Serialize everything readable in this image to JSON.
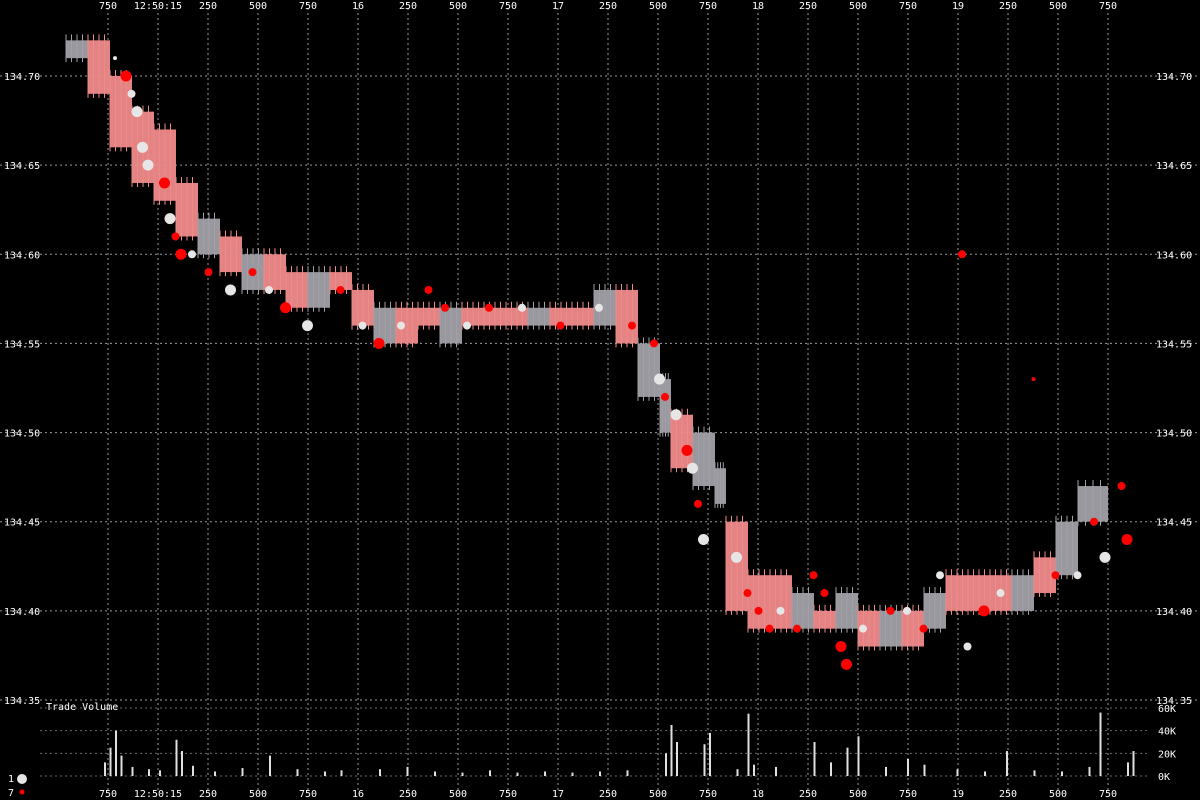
{
  "colors": {
    "background": "#000000",
    "text": "#ffffff",
    "grid": "#9a9a9a",
    "buy": "#ff0000",
    "sell": "#e6e6e6",
    "bid_ask_red": "#f08a8a",
    "bid_ask_gray": "#a0a0a6",
    "volume": "#e0e0e0"
  },
  "legend": {
    "buy_count": "7",
    "sell_count": "1"
  },
  "chart_data": [
    {
      "type": "scatter",
      "ylim": [
        134.35,
        134.72
      ],
      "y_ticks": [
        "134.35",
        "134.40",
        "134.45",
        "134.50",
        "134.55",
        "134.60",
        "134.65",
        "134.70"
      ],
      "x_ticks": [
        "750",
        "12:50:15",
        "250",
        "500",
        "750",
        "16",
        "250",
        "500",
        "750",
        "17",
        "250",
        "500",
        "750",
        "18",
        "250",
        "500",
        "750",
        "19",
        "250",
        "500",
        "750"
      ],
      "bid_ask_spread": [
        {
          "t": 0.0,
          "lo": 134.71,
          "hi": 134.72,
          "tone": "gray"
        },
        {
          "t": 0.4,
          "lo": 134.69,
          "hi": 134.72,
          "tone": "red"
        },
        {
          "t": 0.8,
          "lo": 134.66,
          "hi": 134.7,
          "tone": "red"
        },
        {
          "t": 1.2,
          "lo": 134.64,
          "hi": 134.68,
          "tone": "red"
        },
        {
          "t": 1.6,
          "lo": 134.63,
          "hi": 134.67,
          "tone": "red"
        },
        {
          "t": 2.0,
          "lo": 134.61,
          "hi": 134.64,
          "tone": "red"
        },
        {
          "t": 2.4,
          "lo": 134.6,
          "hi": 134.62,
          "tone": "gray"
        },
        {
          "t": 2.8,
          "lo": 134.59,
          "hi": 134.61,
          "tone": "red"
        },
        {
          "t": 3.2,
          "lo": 134.58,
          "hi": 134.6,
          "tone": "gray"
        },
        {
          "t": 3.6,
          "lo": 134.58,
          "hi": 134.6,
          "tone": "red"
        },
        {
          "t": 4.0,
          "lo": 134.57,
          "hi": 134.59,
          "tone": "red"
        },
        {
          "t": 4.4,
          "lo": 134.57,
          "hi": 134.59,
          "tone": "gray"
        },
        {
          "t": 4.8,
          "lo": 134.58,
          "hi": 134.59,
          "tone": "red"
        },
        {
          "t": 5.2,
          "lo": 134.56,
          "hi": 134.58,
          "tone": "red"
        },
        {
          "t": 5.6,
          "lo": 134.55,
          "hi": 134.57,
          "tone": "gray"
        },
        {
          "t": 6.0,
          "lo": 134.55,
          "hi": 134.57,
          "tone": "red"
        },
        {
          "t": 6.4,
          "lo": 134.56,
          "hi": 134.57,
          "tone": "red"
        },
        {
          "t": 6.8,
          "lo": 134.55,
          "hi": 134.57,
          "tone": "gray"
        },
        {
          "t": 7.2,
          "lo": 134.56,
          "hi": 134.57,
          "tone": "red"
        },
        {
          "t": 7.6,
          "lo": 134.56,
          "hi": 134.57,
          "tone": "red"
        },
        {
          "t": 8.0,
          "lo": 134.56,
          "hi": 134.57,
          "tone": "red"
        },
        {
          "t": 8.4,
          "lo": 134.56,
          "hi": 134.57,
          "tone": "gray"
        },
        {
          "t": 8.8,
          "lo": 134.56,
          "hi": 134.57,
          "tone": "red"
        },
        {
          "t": 9.2,
          "lo": 134.56,
          "hi": 134.57,
          "tone": "red"
        },
        {
          "t": 9.6,
          "lo": 134.56,
          "hi": 134.58,
          "tone": "gray"
        },
        {
          "t": 10.0,
          "lo": 134.55,
          "hi": 134.58,
          "tone": "red"
        },
        {
          "t": 10.4,
          "lo": 134.52,
          "hi": 134.55,
          "tone": "gray"
        },
        {
          "t": 10.8,
          "lo": 134.5,
          "hi": 134.53,
          "tone": "gray"
        },
        {
          "t": 11.0,
          "lo": 134.48,
          "hi": 134.51,
          "tone": "red"
        },
        {
          "t": 11.4,
          "lo": 134.47,
          "hi": 134.5,
          "tone": "gray"
        },
        {
          "t": 11.8,
          "lo": 134.46,
          "hi": 134.48,
          "tone": "gray"
        },
        {
          "t": 12.0,
          "lo": 134.4,
          "hi": 134.45,
          "tone": "red"
        },
        {
          "t": 12.4,
          "lo": 134.39,
          "hi": 134.42,
          "tone": "red"
        },
        {
          "t": 12.8,
          "lo": 134.39,
          "hi": 134.42,
          "tone": "red"
        },
        {
          "t": 13.2,
          "lo": 134.39,
          "hi": 134.41,
          "tone": "gray"
        },
        {
          "t": 13.6,
          "lo": 134.39,
          "hi": 134.4,
          "tone": "red"
        },
        {
          "t": 14.0,
          "lo": 134.39,
          "hi": 134.41,
          "tone": "gray"
        },
        {
          "t": 14.4,
          "lo": 134.38,
          "hi": 134.4,
          "tone": "red"
        },
        {
          "t": 14.8,
          "lo": 134.38,
          "hi": 134.4,
          "tone": "gray"
        },
        {
          "t": 15.2,
          "lo": 134.38,
          "hi": 134.4,
          "tone": "red"
        },
        {
          "t": 15.6,
          "lo": 134.39,
          "hi": 134.41,
          "tone": "gray"
        },
        {
          "t": 16.0,
          "lo": 134.4,
          "hi": 134.42,
          "tone": "red"
        },
        {
          "t": 16.4,
          "lo": 134.4,
          "hi": 134.42,
          "tone": "red"
        },
        {
          "t": 16.8,
          "lo": 134.4,
          "hi": 134.42,
          "tone": "red"
        },
        {
          "t": 17.2,
          "lo": 134.4,
          "hi": 134.42,
          "tone": "gray"
        },
        {
          "t": 17.6,
          "lo": 134.41,
          "hi": 134.43,
          "tone": "red"
        },
        {
          "t": 18.0,
          "lo": 134.42,
          "hi": 134.45,
          "tone": "gray"
        },
        {
          "t": 18.4,
          "lo": 134.45,
          "hi": 134.47,
          "tone": "gray"
        }
      ],
      "trades": [
        {
          "t": 0.2,
          "price": 134.71,
          "side": "sell",
          "size": 1
        },
        {
          "t": 0.4,
          "price": 134.7,
          "side": "buy",
          "size": 3
        },
        {
          "t": 0.5,
          "price": 134.69,
          "side": "sell",
          "size": 2
        },
        {
          "t": 0.6,
          "price": 134.68,
          "side": "sell",
          "size": 3
        },
        {
          "t": 0.7,
          "price": 134.66,
          "side": "sell",
          "size": 3
        },
        {
          "t": 0.8,
          "price": 134.65,
          "side": "sell",
          "size": 3
        },
        {
          "t": 1.1,
          "price": 134.64,
          "side": "buy",
          "size": 3
        },
        {
          "t": 1.2,
          "price": 134.62,
          "side": "sell",
          "size": 3
        },
        {
          "t": 1.3,
          "price": 134.61,
          "side": "buy",
          "size": 2
        },
        {
          "t": 1.4,
          "price": 134.6,
          "side": "buy",
          "size": 3
        },
        {
          "t": 1.6,
          "price": 134.6,
          "side": "sell",
          "size": 2
        },
        {
          "t": 1.9,
          "price": 134.59,
          "side": "buy",
          "size": 2
        },
        {
          "t": 2.3,
          "price": 134.58,
          "side": "sell",
          "size": 3
        },
        {
          "t": 2.7,
          "price": 134.59,
          "side": "buy",
          "size": 2
        },
        {
          "t": 3.0,
          "price": 134.58,
          "side": "sell",
          "size": 2
        },
        {
          "t": 3.3,
          "price": 134.57,
          "side": "buy",
          "size": 3
        },
        {
          "t": 3.7,
          "price": 134.56,
          "side": "sell",
          "size": 3
        },
        {
          "t": 4.3,
          "price": 134.58,
          "side": "buy",
          "size": 2
        },
        {
          "t": 4.7,
          "price": 134.56,
          "side": "sell",
          "size": 2
        },
        {
          "t": 5.0,
          "price": 134.55,
          "side": "buy",
          "size": 3
        },
        {
          "t": 5.4,
          "price": 134.56,
          "side": "sell",
          "size": 2
        },
        {
          "t": 5.9,
          "price": 134.58,
          "side": "buy",
          "size": 2
        },
        {
          "t": 6.2,
          "price": 134.57,
          "side": "buy",
          "size": 2
        },
        {
          "t": 6.6,
          "price": 134.56,
          "side": "sell",
          "size": 2
        },
        {
          "t": 7.0,
          "price": 134.57,
          "side": "buy",
          "size": 2
        },
        {
          "t": 7.6,
          "price": 134.57,
          "side": "sell",
          "size": 2
        },
        {
          "t": 8.3,
          "price": 134.56,
          "side": "buy",
          "size": 2
        },
        {
          "t": 9.0,
          "price": 134.57,
          "side": "sell",
          "size": 2
        },
        {
          "t": 9.6,
          "price": 134.56,
          "side": "buy",
          "size": 2
        },
        {
          "t": 10.0,
          "price": 134.55,
          "side": "buy",
          "size": 2
        },
        {
          "t": 10.1,
          "price": 134.53,
          "side": "sell",
          "size": 3
        },
        {
          "t": 10.2,
          "price": 134.52,
          "side": "buy",
          "size": 2
        },
        {
          "t": 10.4,
          "price": 134.51,
          "side": "sell",
          "size": 3
        },
        {
          "t": 10.6,
          "price": 134.49,
          "side": "buy",
          "size": 3
        },
        {
          "t": 10.7,
          "price": 134.48,
          "side": "sell",
          "size": 3
        },
        {
          "t": 10.8,
          "price": 134.46,
          "side": "buy",
          "size": 2
        },
        {
          "t": 10.9,
          "price": 134.44,
          "side": "sell",
          "size": 3
        },
        {
          "t": 11.5,
          "price": 134.43,
          "side": "sell",
          "size": 3
        },
        {
          "t": 11.7,
          "price": 134.41,
          "side": "buy",
          "size": 2
        },
        {
          "t": 11.9,
          "price": 134.4,
          "side": "buy",
          "size": 2
        },
        {
          "t": 12.1,
          "price": 134.39,
          "side": "buy",
          "size": 2
        },
        {
          "t": 12.3,
          "price": 134.4,
          "side": "sell",
          "size": 2
        },
        {
          "t": 12.6,
          "price": 134.39,
          "side": "buy",
          "size": 2
        },
        {
          "t": 12.9,
          "price": 134.42,
          "side": "buy",
          "size": 2
        },
        {
          "t": 13.1,
          "price": 134.41,
          "side": "buy",
          "size": 2
        },
        {
          "t": 13.4,
          "price": 134.38,
          "side": "buy",
          "size": 3
        },
        {
          "t": 13.5,
          "price": 134.37,
          "side": "buy",
          "size": 3
        },
        {
          "t": 13.8,
          "price": 134.39,
          "side": "sell",
          "size": 2
        },
        {
          "t": 14.3,
          "price": 134.4,
          "side": "buy",
          "size": 2
        },
        {
          "t": 14.6,
          "price": 134.4,
          "side": "sell",
          "size": 2
        },
        {
          "t": 14.9,
          "price": 134.39,
          "side": "buy",
          "size": 2
        },
        {
          "t": 15.2,
          "price": 134.42,
          "side": "sell",
          "size": 2
        },
        {
          "t": 15.6,
          "price": 134.6,
          "side": "buy",
          "size": 2
        },
        {
          "t": 15.7,
          "price": 134.38,
          "side": "sell",
          "size": 2
        },
        {
          "t": 16.0,
          "price": 134.4,
          "side": "buy",
          "size": 3
        },
        {
          "t": 16.3,
          "price": 134.41,
          "side": "sell",
          "size": 2
        },
        {
          "t": 16.9,
          "price": 134.53,
          "side": "buy",
          "size": 1
        },
        {
          "t": 17.3,
          "price": 134.42,
          "side": "buy",
          "size": 2
        },
        {
          "t": 17.7,
          "price": 134.42,
          "side": "sell",
          "size": 2
        },
        {
          "t": 18.0,
          "price": 134.45,
          "side": "buy",
          "size": 2
        },
        {
          "t": 18.2,
          "price": 134.43,
          "side": "sell",
          "size": 3
        },
        {
          "t": 18.5,
          "price": 134.47,
          "side": "buy",
          "size": 2
        },
        {
          "t": 18.6,
          "price": 134.44,
          "side": "buy",
          "size": 3
        }
      ]
    },
    {
      "type": "bar",
      "title": "Trade Volume",
      "ylim": [
        0,
        60000
      ],
      "y_ticks": [
        "0K",
        "20K",
        "40K",
        "60K"
      ],
      "y_tick_values": [
        0,
        20000,
        40000,
        60000
      ],
      "bars": [
        {
          "t": 0.0,
          "v": 12000
        },
        {
          "t": 0.1,
          "v": 25000
        },
        {
          "t": 0.2,
          "v": 40000
        },
        {
          "t": 0.3,
          "v": 18000
        },
        {
          "t": 0.5,
          "v": 8000
        },
        {
          "t": 0.8,
          "v": 6000
        },
        {
          "t": 1.0,
          "v": 5000
        },
        {
          "t": 1.3,
          "v": 32000
        },
        {
          "t": 1.4,
          "v": 22000
        },
        {
          "t": 1.6,
          "v": 9000
        },
        {
          "t": 2.0,
          "v": 4000
        },
        {
          "t": 2.5,
          "v": 7000
        },
        {
          "t": 3.0,
          "v": 18000
        },
        {
          "t": 3.5,
          "v": 6000
        },
        {
          "t": 4.0,
          "v": 4000
        },
        {
          "t": 4.3,
          "v": 5000
        },
        {
          "t": 5.0,
          "v": 6000
        },
        {
          "t": 5.5,
          "v": 8000
        },
        {
          "t": 6.0,
          "v": 4000
        },
        {
          "t": 6.5,
          "v": 3000
        },
        {
          "t": 7.0,
          "v": 5000
        },
        {
          "t": 7.5,
          "v": 3000
        },
        {
          "t": 8.0,
          "v": 4000
        },
        {
          "t": 8.5,
          "v": 3000
        },
        {
          "t": 9.0,
          "v": 4000
        },
        {
          "t": 9.5,
          "v": 5000
        },
        {
          "t": 10.2,
          "v": 20000
        },
        {
          "t": 10.3,
          "v": 45000
        },
        {
          "t": 10.4,
          "v": 30000
        },
        {
          "t": 10.9,
          "v": 28000
        },
        {
          "t": 11.0,
          "v": 38000
        },
        {
          "t": 11.5,
          "v": 6000
        },
        {
          "t": 11.7,
          "v": 55000
        },
        {
          "t": 11.8,
          "v": 10000
        },
        {
          "t": 12.2,
          "v": 8000
        },
        {
          "t": 12.9,
          "v": 30000
        },
        {
          "t": 13.2,
          "v": 12000
        },
        {
          "t": 13.5,
          "v": 25000
        },
        {
          "t": 13.7,
          "v": 35000
        },
        {
          "t": 14.2,
          "v": 8000
        },
        {
          "t": 14.6,
          "v": 15000
        },
        {
          "t": 14.9,
          "v": 10000
        },
        {
          "t": 15.5,
          "v": 6000
        },
        {
          "t": 16.0,
          "v": 4000
        },
        {
          "t": 16.4,
          "v": 22000
        },
        {
          "t": 16.9,
          "v": 5000
        },
        {
          "t": 17.4,
          "v": 4000
        },
        {
          "t": 17.9,
          "v": 8000
        },
        {
          "t": 18.1,
          "v": 56000
        },
        {
          "t": 18.6,
          "v": 12000
        },
        {
          "t": 18.7,
          "v": 22000
        }
      ]
    }
  ]
}
